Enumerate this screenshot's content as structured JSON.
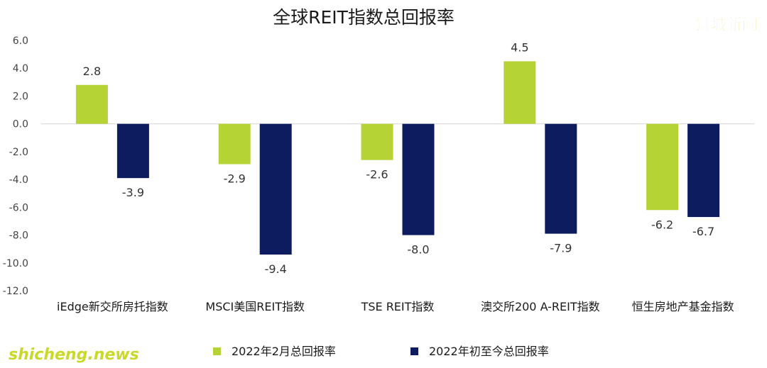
{
  "chart_data": {
    "type": "bar",
    "title": "全球REIT指数总回报率",
    "categories": [
      "iEdge新交所房托指数",
      "MSCI美国REIT指数",
      "TSE REIT指数",
      "澳交所200 A-REIT指数",
      "恒生房地产基金指数"
    ],
    "series": [
      {
        "name": "2022年2月总回报率",
        "values": [
          2.8,
          -2.9,
          -2.6,
          4.5,
          -6.2
        ],
        "color": "#b5d335"
      },
      {
        "name": "2022年初至今总回报率",
        "values": [
          -3.9,
          -9.4,
          -8.0,
          -7.9,
          -6.7
        ],
        "color": "#0d1c5e"
      }
    ],
    "ylim": [
      -12,
      6
    ],
    "yticks": [
      6,
      4,
      2,
      0,
      -2,
      -4,
      -6,
      -8,
      -10,
      -12
    ],
    "ytick_labels": [
      "6.0",
      "4.0",
      "2.0",
      "0.0",
      "-2.0",
      "-4.0",
      "-6.0",
      "-8.0",
      "-10.0",
      "-12.0"
    ],
    "data_labels": [
      [
        "2.8",
        "-2.9",
        "-2.6",
        "4.5",
        "-6.2"
      ],
      [
        "-3.9",
        "-9.4",
        "-8.0",
        "-7.9",
        "-6.7"
      ]
    ],
    "legend_position": "bottom",
    "grid": false
  },
  "watermarks": {
    "top_right": "狮城新闻",
    "bottom_left": "shicheng.news"
  }
}
